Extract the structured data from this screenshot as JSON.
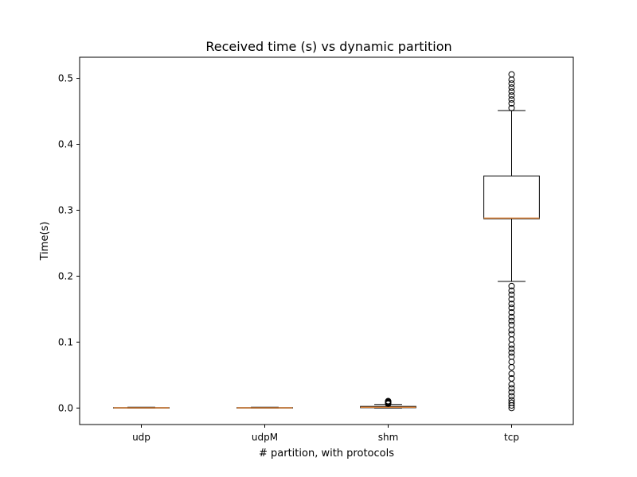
{
  "chart_data": {
    "type": "boxplot",
    "title": "Received time (s) vs dynamic partition",
    "xlabel": "# partition, with protocols",
    "ylabel": "Time(s)",
    "ylim": [
      -0.025,
      0.532
    ],
    "yticks": [
      0.0,
      0.1,
      0.2,
      0.3,
      0.4,
      0.5
    ],
    "ytick_labels": [
      "0.0",
      "0.1",
      "0.2",
      "0.3",
      "0.4",
      "0.5"
    ],
    "categories": [
      "udp",
      "udpM",
      "shm",
      "tcp"
    ],
    "grid": false,
    "colors": {
      "box": "#000000",
      "median": "#d9823a",
      "flier": "#000000"
    },
    "boxes": [
      {
        "category": "udp",
        "whislo": 0.0,
        "q1": 0.0,
        "med": 0.0003,
        "q3": 0.0006,
        "whishi": 0.0012,
        "fliers": []
      },
      {
        "category": "udpM",
        "whislo": 0.0,
        "q1": 0.0,
        "med": 0.0003,
        "q3": 0.0006,
        "whishi": 0.0012,
        "fliers": []
      },
      {
        "category": "shm",
        "whislo": 0.0,
        "q1": 0.0005,
        "med": 0.0012,
        "q3": 0.0025,
        "whishi": 0.0055,
        "fliers": [
          0.0065,
          0.0075,
          0.0085,
          0.0095,
          0.0105
        ]
      },
      {
        "category": "tcp",
        "whislo": 0.192,
        "q1": 0.287,
        "med": 0.288,
        "q3": 0.352,
        "whishi": 0.451,
        "fliers": [
          0.0,
          0.004,
          0.008,
          0.012,
          0.018,
          0.024,
          0.03,
          0.036,
          0.045,
          0.052,
          0.062,
          0.07,
          0.078,
          0.084,
          0.09,
          0.096,
          0.104,
          0.112,
          0.118,
          0.126,
          0.132,
          0.138,
          0.145,
          0.152,
          0.158,
          0.165,
          0.172,
          0.178,
          0.185,
          0.455,
          0.462,
          0.468,
          0.474,
          0.48,
          0.486,
          0.492,
          0.498,
          0.506
        ]
      }
    ]
  }
}
